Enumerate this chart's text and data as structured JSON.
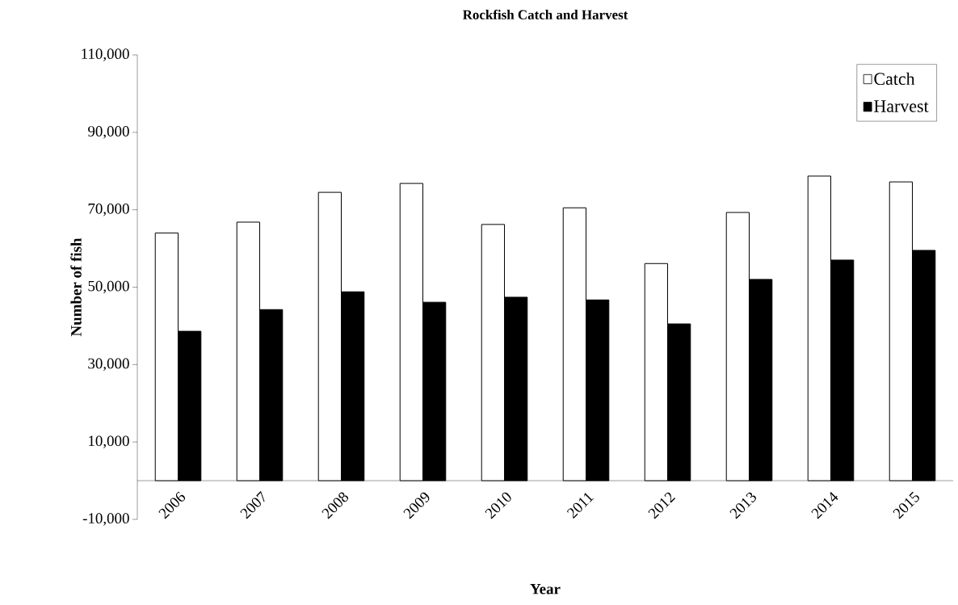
{
  "chart_data": {
    "type": "bar",
    "title": "Rockfish Catch and Harvest",
    "xlabel": "Year",
    "ylabel": "Number of fish",
    "categories": [
      "2006",
      "2007",
      "2008",
      "2009",
      "2010",
      "2011",
      "2012",
      "2013",
      "2014",
      "2015"
    ],
    "series": [
      {
        "name": "Catch",
        "color": "#ffffff",
        "values": [
          64000,
          66800,
          74500,
          76800,
          66200,
          70500,
          56100,
          69300,
          78700,
          77200
        ]
      },
      {
        "name": "Harvest",
        "color": "#000000",
        "values": [
          38600,
          44200,
          48800,
          46100,
          47400,
          46700,
          40500,
          52000,
          57000,
          59500
        ]
      }
    ],
    "ylim": [
      -10000,
      110000
    ],
    "yticks": [
      {
        "value": -10000,
        "label": "-10,000"
      },
      {
        "value": 10000,
        "label": "10,000"
      },
      {
        "value": 30000,
        "label": "30,000"
      },
      {
        "value": 50000,
        "label": "50,000"
      },
      {
        "value": 70000,
        "label": "70,000"
      },
      {
        "value": 90000,
        "label": "90,000"
      },
      {
        "value": 110000,
        "label": "110,000"
      }
    ],
    "legend": "top right"
  }
}
